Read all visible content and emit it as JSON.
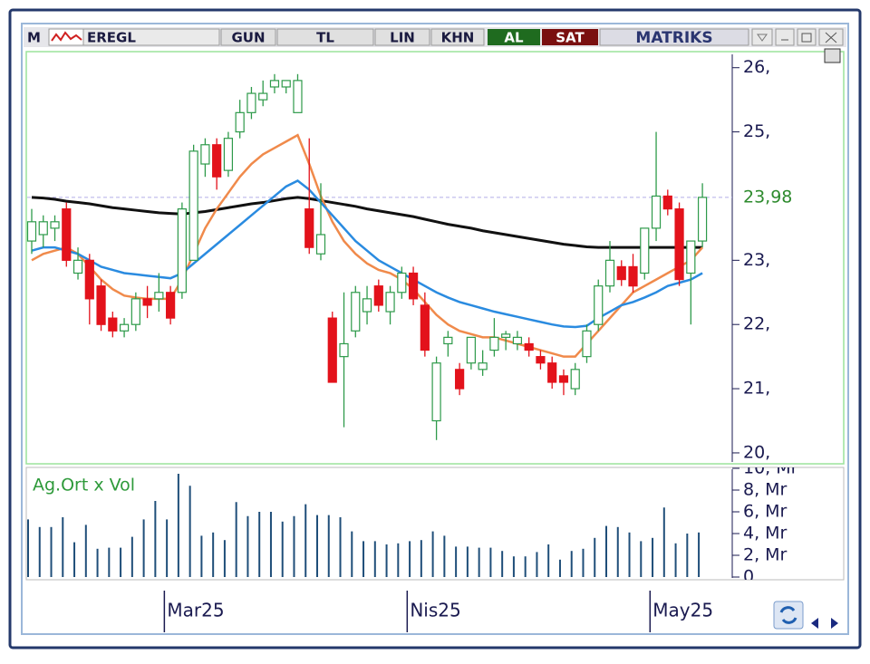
{
  "toolbar": {
    "symbol": "EREGL",
    "buttons": [
      "GUN",
      "TL",
      "LIN",
      "KHN"
    ],
    "buy": "AL",
    "sell": "SAT",
    "brand": "MATRIKS"
  },
  "chart_data": [
    {
      "type": "candlestick",
      "categories": [
        null,
        null,
        null,
        null,
        null,
        null,
        null,
        null,
        null,
        null,
        null,
        "Mar25",
        null,
        null,
        null,
        null,
        null,
        null,
        null,
        null,
        null,
        null,
        null,
        null,
        null,
        null,
        null,
        null,
        null,
        null,
        null,
        null,
        "Nis25",
        null,
        null,
        null,
        null,
        null,
        null,
        null,
        null,
        null,
        null,
        null,
        null,
        null,
        null,
        null,
        null,
        null,
        null,
        null,
        null,
        "May25",
        null,
        null,
        null,
        null,
        null
      ],
      "open": [
        23.3,
        23.4,
        23.5,
        23.8,
        22.8,
        23.0,
        22.6,
        22.1,
        21.9,
        22.0,
        22.4,
        22.4,
        22.5,
        22.5,
        23.0,
        24.5,
        24.8,
        24.4,
        25.0,
        25.3,
        25.5,
        25.7,
        25.7,
        25.3,
        23.8,
        23.1,
        22.1,
        21.5,
        21.9,
        22.2,
        22.6,
        22.2,
        22.5,
        22.8,
        22.3,
        20.5,
        21.7,
        21.3,
        21.4,
        21.3,
        21.6,
        21.8,
        21.7,
        21.7,
        21.5,
        21.4,
        21.2,
        21.0,
        21.5,
        22.0,
        22.6,
        22.9,
        22.9,
        22.8,
        23.5,
        24.0,
        23.8,
        22.8,
        23.3
      ],
      "high": [
        23.8,
        23.7,
        23.7,
        23.9,
        23.2,
        23.1,
        22.7,
        22.2,
        22.1,
        22.5,
        22.6,
        22.8,
        22.6,
        23.9,
        24.8,
        24.9,
        24.9,
        25.0,
        25.5,
        25.7,
        25.8,
        25.9,
        25.8,
        25.9,
        24.9,
        24.2,
        22.2,
        22.5,
        22.6,
        22.6,
        22.7,
        22.6,
        22.9,
        22.9,
        22.5,
        21.5,
        21.9,
        21.4,
        21.8,
        21.6,
        22.1,
        21.9,
        21.9,
        21.8,
        21.6,
        21.5,
        21.3,
        21.4,
        22.0,
        22.7,
        23.3,
        23.0,
        23.1,
        23.5,
        25.0,
        24.1,
        23.9,
        23.3,
        24.2
      ],
      "low": [
        23.1,
        23.2,
        23.3,
        22.9,
        22.7,
        22.0,
        21.9,
        21.8,
        21.8,
        21.9,
        22.1,
        22.2,
        22.0,
        22.4,
        23.0,
        24.3,
        24.1,
        24.3,
        24.9,
        25.2,
        25.4,
        25.6,
        25.6,
        25.3,
        23.1,
        23.0,
        21.1,
        20.4,
        21.8,
        22.0,
        22.2,
        22.0,
        22.4,
        22.3,
        21.5,
        20.2,
        21.5,
        20.9,
        21.3,
        21.2,
        21.5,
        21.6,
        21.6,
        21.5,
        21.3,
        21.0,
        20.9,
        20.9,
        21.4,
        21.9,
        22.5,
        22.6,
        22.5,
        22.7,
        23.3,
        23.7,
        22.6,
        22.0,
        23.2
      ],
      "close": [
        23.6,
        23.6,
        23.6,
        23.0,
        23.0,
        22.4,
        22.0,
        21.9,
        22.0,
        22.4,
        22.3,
        22.5,
        22.1,
        23.8,
        24.7,
        24.8,
        24.3,
        24.9,
        25.3,
        25.6,
        25.6,
        25.8,
        25.8,
        25.8,
        23.2,
        23.4,
        21.1,
        21.7,
        22.5,
        22.4,
        22.3,
        22.5,
        22.8,
        22.4,
        21.6,
        21.4,
        21.8,
        21.0,
        21.8,
        21.4,
        21.8,
        21.85,
        21.8,
        21.6,
        21.4,
        21.1,
        21.1,
        21.3,
        21.9,
        22.6,
        23.0,
        22.7,
        22.6,
        23.5,
        24.0,
        23.8,
        22.7,
        23.3,
        23.98
      ],
      "up_color": "#2e9a4a",
      "down_color": "#e3121b",
      "lines": [
        {
          "color": "#111111",
          "values": [
            23.98,
            23.97,
            23.95,
            23.92,
            23.9,
            23.88,
            23.85,
            23.82,
            23.8,
            23.78,
            23.76,
            23.74,
            23.73,
            23.72,
            23.74,
            23.76,
            23.79,
            23.82,
            23.85,
            23.88,
            23.9,
            23.93,
            23.96,
            23.98,
            23.96,
            23.93,
            23.9,
            23.87,
            23.84,
            23.8,
            23.77,
            23.74,
            23.71,
            23.68,
            23.64,
            23.6,
            23.56,
            23.53,
            23.5,
            23.46,
            23.43,
            23.4,
            23.37,
            23.34,
            23.31,
            23.28,
            23.25,
            23.23,
            23.21,
            23.2,
            23.2,
            23.2,
            23.2,
            23.2,
            23.2,
            23.2,
            23.2,
            23.2,
            23.2
          ]
        },
        {
          "color": "#f08a4b",
          "values": [
            23.0,
            23.1,
            23.15,
            23.2,
            23.1,
            22.9,
            22.7,
            22.55,
            22.45,
            22.42,
            22.4,
            22.4,
            22.4,
            22.7,
            23.1,
            23.5,
            23.8,
            24.05,
            24.3,
            24.5,
            24.65,
            24.75,
            24.85,
            24.95,
            24.5,
            24.0,
            23.6,
            23.3,
            23.1,
            22.95,
            22.85,
            22.8,
            22.7,
            22.55,
            22.35,
            22.15,
            22.0,
            21.9,
            21.85,
            21.8,
            21.8,
            21.75,
            21.7,
            21.65,
            21.6,
            21.55,
            21.5,
            21.5,
            21.7,
            21.9,
            22.1,
            22.3,
            22.5,
            22.6,
            22.7,
            22.8,
            22.9,
            23.0,
            23.2
          ]
        },
        {
          "color": "#2a8be0",
          "values": [
            23.15,
            23.2,
            23.2,
            23.15,
            23.1,
            23.0,
            22.9,
            22.85,
            22.8,
            22.78,
            22.76,
            22.74,
            22.72,
            22.8,
            22.95,
            23.1,
            23.25,
            23.4,
            23.55,
            23.7,
            23.85,
            24.0,
            24.15,
            24.24,
            24.1,
            23.9,
            23.7,
            23.5,
            23.3,
            23.15,
            23.0,
            22.9,
            22.8,
            22.7,
            22.6,
            22.5,
            22.42,
            22.35,
            22.3,
            22.25,
            22.2,
            22.16,
            22.12,
            22.08,
            22.04,
            22.0,
            21.97,
            21.96,
            21.98,
            22.1,
            22.2,
            22.3,
            22.35,
            22.42,
            22.5,
            22.6,
            22.65,
            22.7,
            22.8
          ]
        }
      ],
      "last_price": {
        "value": 23.98,
        "label": "23,98",
        "color": "#2e8b2e"
      },
      "ylim": [
        19.83,
        26.25
      ],
      "yticks": [
        {
          "value": 20,
          "label": "20,"
        },
        {
          "value": 21,
          "label": "21,"
        },
        {
          "value": 22,
          "label": "22,"
        },
        {
          "value": 23,
          "label": "23,"
        },
        {
          "value": 25,
          "label": "25,"
        },
        {
          "value": 26,
          "label": "26,"
        }
      ]
    },
    {
      "type": "bar",
      "title": "Ag.Ort x Vol",
      "color": "#1f4e79",
      "values": [
        5.3,
        4.6,
        4.6,
        5.5,
        3.2,
        4.8,
        2.6,
        2.7,
        2.7,
        3.7,
        5.3,
        7.0,
        5.3,
        9.5,
        8.4,
        3.8,
        4.1,
        3.4,
        6.9,
        5.6,
        6.0,
        6.0,
        5.1,
        5.6,
        6.7,
        5.7,
        5.7,
        5.5,
        4.2,
        3.3,
        3.3,
        3.0,
        3.1,
        3.3,
        3.4,
        4.2,
        3.8,
        2.8,
        2.8,
        2.7,
        2.7,
        2.4,
        1.9,
        1.9,
        2.3,
        3.0,
        1.6,
        2.4,
        2.6,
        3.6,
        4.7,
        4.6,
        4.1,
        3.3,
        3.6,
        6.4,
        3.1,
        4.0,
        4.1
      ],
      "ylim": [
        0,
        10
      ],
      "yticks": [
        {
          "value": 0,
          "label": "0"
        },
        {
          "value": 2,
          "label": "2, Mr"
        },
        {
          "value": 4,
          "label": "4, Mr"
        },
        {
          "value": 6,
          "label": "6, Mr"
        },
        {
          "value": 8,
          "label": "8, Mr"
        },
        {
          "value": 10,
          "label": "10, Mr"
        }
      ]
    }
  ]
}
